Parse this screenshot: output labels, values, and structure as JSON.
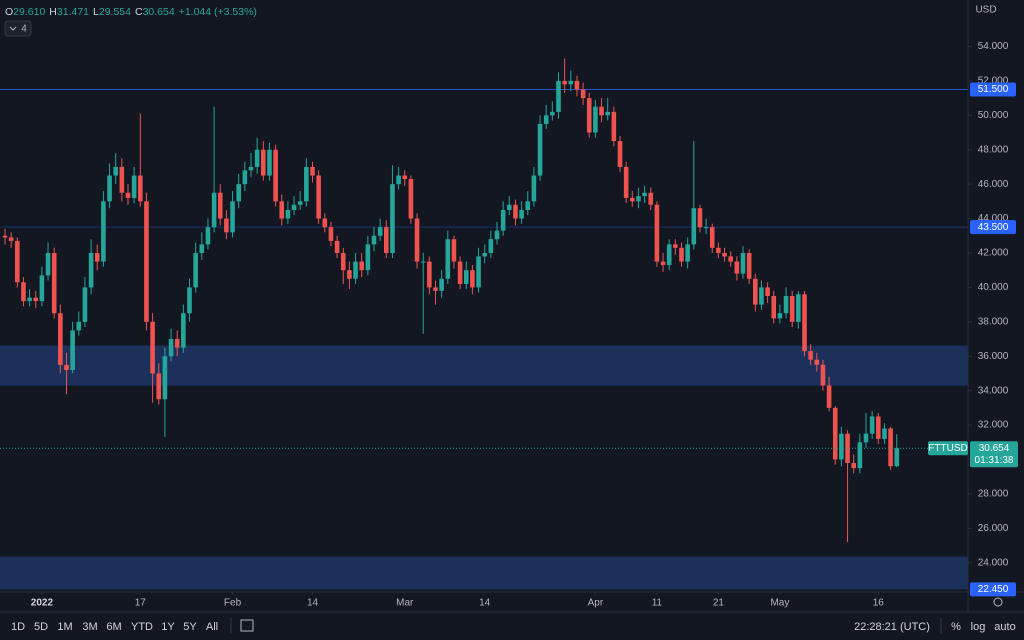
{
  "chart_data": {
    "type": "candlestick",
    "symbol": "FTTUSD",
    "currency": "USD",
    "indicator_count": 4,
    "header": [
      {
        "key": "O",
        "value": "29.610"
      },
      {
        "key": "H",
        "value": "31.471"
      },
      {
        "key": "L",
        "value": "29.554"
      },
      {
        "key": "C",
        "value": "30.654"
      },
      {
        "key": "",
        "value": "+1.044 (+3.53%)"
      }
    ],
    "up_color": "#26a69a",
    "down_color": "#ef5350",
    "open": [
      43.0,
      42.9,
      42.7,
      40.3,
      39.2,
      39.4,
      39.2,
      40.7,
      42.0,
      38.5,
      35.5,
      35.2,
      37.5,
      38.0,
      40.0,
      42.0,
      41.5,
      45.0,
      46.5,
      47.0,
      45.5,
      45.2,
      46.5,
      45.0,
      38.0,
      35.0,
      33.5,
      36.0,
      37.0,
      36.5,
      38.5,
      40.0,
      42.0,
      42.5,
      43.5,
      45.5,
      44.0,
      43.2,
      45.0,
      46.0,
      46.8,
      47.0,
      48.0,
      46.5,
      48.0,
      45.0,
      44.0,
      44.5,
      44.8,
      45.0,
      47.0,
      46.5,
      44.0,
      43.5,
      42.7,
      42.0,
      41.0,
      40.5,
      41.5,
      41.0,
      42.5,
      43.0,
      43.5,
      42.0,
      46.0,
      46.5,
      46.3,
      44.0,
      41.5,
      41.5,
      40.0,
      39.8,
      40.5,
      42.8,
      41.5,
      40.2,
      41.0,
      40.0,
      41.8,
      42.0,
      42.8,
      43.3,
      44.5,
      44.8,
      44.0,
      44.5,
      45.0,
      46.5,
      49.5,
      50.0,
      50.2,
      52.0,
      51.8,
      52.0,
      51.5,
      51.0,
      49.0,
      50.5,
      50.0,
      50.2,
      48.5,
      47.0,
      45.2,
      45.0,
      45.3,
      45.5,
      44.8,
      41.5,
      41.3,
      42.5,
      42.3,
      41.5,
      42.5,
      44.6,
      43.5,
      43.5,
      42.3,
      42.0,
      41.8,
      41.5,
      40.8,
      42.0,
      40.5,
      39.0,
      40.0,
      39.5,
      38.2,
      38.5,
      39.5,
      38.0,
      39.6,
      36.3,
      35.8,
      35.5,
      34.3,
      33.0,
      30.0,
      31.5,
      29.8,
      29.5,
      31.0,
      31.5,
      32.5,
      31.2,
      31.8,
      29.61
    ],
    "high": [
      43.4,
      43.2,
      42.9,
      40.6,
      39.9,
      39.8,
      41.2,
      42.6,
      42.3,
      39.0,
      36.2,
      38.0,
      38.6,
      40.6,
      42.8,
      42.5,
      45.6,
      47.2,
      47.8,
      47.5,
      46.0,
      47.0,
      50.1,
      45.5,
      38.5,
      35.6,
      36.5,
      37.6,
      37.5,
      39.0,
      40.5,
      42.6,
      43.2,
      44.0,
      50.5,
      46.0,
      44.5,
      45.6,
      46.6,
      47.3,
      47.8,
      48.7,
      48.5,
      48.4,
      48.3,
      45.4,
      45.0,
      45.3,
      45.6,
      47.5,
      47.3,
      46.8,
      44.3,
      43.8,
      43.0,
      42.3,
      41.5,
      42.0,
      42.0,
      43.0,
      43.5,
      44.0,
      43.9,
      47.1,
      47.0,
      46.8,
      46.5,
      44.3,
      42.0,
      41.8,
      40.4,
      41.0,
      43.3,
      43.0,
      41.8,
      41.5,
      41.3,
      42.3,
      42.5,
      43.3,
      43.8,
      45.0,
      45.3,
      45.1,
      45.0,
      45.6,
      47.0,
      50.0,
      50.6,
      50.8,
      52.5,
      53.3,
      52.6,
      52.3,
      51.9,
      51.3,
      50.9,
      51.0,
      51.0,
      50.5,
      48.8,
      47.3,
      45.6,
      45.8,
      45.9,
      45.8,
      45.0,
      42.0,
      42.8,
      42.8,
      42.6,
      42.9,
      48.5,
      44.8,
      44.0,
      43.7,
      42.6,
      42.3,
      42.1,
      41.8,
      42.4,
      42.2,
      40.8,
      40.4,
      40.3,
      39.8,
      39.0,
      40.0,
      39.8,
      39.8,
      39.8,
      36.7,
      36.2,
      35.8,
      34.8,
      33.1,
      31.9,
      31.7,
      30.3,
      31.5,
      32.7,
      32.8,
      32.7,
      32.1,
      31.9,
      31.471
    ],
    "low": [
      42.5,
      42.3,
      40.0,
      38.9,
      38.9,
      38.8,
      38.9,
      40.4,
      38.2,
      35.0,
      33.8,
      35.0,
      37.2,
      37.7,
      39.6,
      41.0,
      41.2,
      44.6,
      46.0,
      45.0,
      44.8,
      44.9,
      44.7,
      37.5,
      33.3,
      33.2,
      31.3,
      35.7,
      36.0,
      36.2,
      38.0,
      39.7,
      41.6,
      42.2,
      43.2,
      43.6,
      42.8,
      42.9,
      44.6,
      45.6,
      46.4,
      46.6,
      46.2,
      46.2,
      44.7,
      43.6,
      43.7,
      44.2,
      44.5,
      44.7,
      46.1,
      43.7,
      43.2,
      42.4,
      41.7,
      40.2,
      39.9,
      40.2,
      40.6,
      40.7,
      42.1,
      42.7,
      41.7,
      41.7,
      45.7,
      45.9,
      43.7,
      41.1,
      37.3,
      39.6,
      39.0,
      39.4,
      40.2,
      41.1,
      39.9,
      39.9,
      39.6,
      39.7,
      41.4,
      41.7,
      42.5,
      43.0,
      44.2,
      43.6,
      43.7,
      44.2,
      44.7,
      46.2,
      49.2,
      49.7,
      49.8,
      51.3,
      51.4,
      51.1,
      50.6,
      48.7,
      48.7,
      49.6,
      49.7,
      48.2,
      46.7,
      44.9,
      44.7,
      44.6,
      44.9,
      44.5,
      41.2,
      40.9,
      41.0,
      41.9,
      41.2,
      41.1,
      42.2,
      43.2,
      43.1,
      42.0,
      41.7,
      41.5,
      41.2,
      40.4,
      40.5,
      40.2,
      38.6,
      38.7,
      39.1,
      37.9,
      37.9,
      38.2,
      37.7,
      37.6,
      36.0,
      35.5,
      35.1,
      34.0,
      32.8,
      29.7,
      29.6,
      25.2,
      29.2,
      29.2,
      30.7,
      31.2,
      30.9,
      30.9,
      29.4,
      29.554
    ],
    "close": [
      42.9,
      42.7,
      40.3,
      39.2,
      39.4,
      39.2,
      40.7,
      42.0,
      38.5,
      35.5,
      35.2,
      37.5,
      38.0,
      40.0,
      42.0,
      41.5,
      45.0,
      46.5,
      47.0,
      45.5,
      45.2,
      46.5,
      45.0,
      38.0,
      35.0,
      33.5,
      36.0,
      37.0,
      36.5,
      38.5,
      40.0,
      42.0,
      42.5,
      43.5,
      45.5,
      44.0,
      43.2,
      45.0,
      46.0,
      46.8,
      47.0,
      48.0,
      46.5,
      48.0,
      45.0,
      44.0,
      44.5,
      44.8,
      45.0,
      47.0,
      46.5,
      44.0,
      43.5,
      42.7,
      42.0,
      41.0,
      40.5,
      41.5,
      41.0,
      42.5,
      43.0,
      43.5,
      42.0,
      46.0,
      46.5,
      46.3,
      44.0,
      41.5,
      41.5,
      40.0,
      39.8,
      40.5,
      42.8,
      41.5,
      40.2,
      41.0,
      40.0,
      41.8,
      42.0,
      42.8,
      43.3,
      44.5,
      44.8,
      44.0,
      44.5,
      45.0,
      46.5,
      49.5,
      50.0,
      50.2,
      52.0,
      51.8,
      52.0,
      51.5,
      51.0,
      49.0,
      50.5,
      50.0,
      50.2,
      48.5,
      47.0,
      45.2,
      45.0,
      45.3,
      45.5,
      44.8,
      41.5,
      41.3,
      42.5,
      42.3,
      41.5,
      42.5,
      44.6,
      43.5,
      43.5,
      42.3,
      42.0,
      41.8,
      41.5,
      40.8,
      42.0,
      40.5,
      39.0,
      40.0,
      39.5,
      38.2,
      38.5,
      39.5,
      38.0,
      39.6,
      36.3,
      35.8,
      35.5,
      34.3,
      33.0,
      30.0,
      31.5,
      29.8,
      29.5,
      31.0,
      31.5,
      32.5,
      31.2,
      31.8,
      29.61,
      30.654
    ],
    "ylim": [
      22.3,
      56.7
    ],
    "yticks": [
      {
        "value": 24,
        "label": "24.000"
      },
      {
        "value": 26,
        "label": "26.000"
      },
      {
        "value": 28,
        "label": "28.000"
      },
      {
        "value": 30,
        "label": "30.000"
      },
      {
        "value": 32,
        "label": "32.000"
      },
      {
        "value": 34,
        "label": "34.000"
      },
      {
        "value": 36,
        "label": "36.000"
      },
      {
        "value": 38,
        "label": "38.000"
      },
      {
        "value": 40,
        "label": "40.000"
      },
      {
        "value": 42,
        "label": "42.000"
      },
      {
        "value": 44,
        "label": "44.000"
      },
      {
        "value": 46,
        "label": "46.000"
      },
      {
        "value": 48,
        "label": "48.000"
      },
      {
        "value": 50,
        "label": "50.000"
      },
      {
        "value": 52,
        "label": "52.000"
      },
      {
        "value": 54,
        "label": "54.000"
      }
    ],
    "xticks": [
      {
        "value": 6,
        "label": "2022"
      },
      {
        "value": 22,
        "label": "17"
      },
      {
        "value": 37,
        "label": "Feb"
      },
      {
        "value": 50,
        "label": "14"
      },
      {
        "value": 65,
        "label": "Mar"
      },
      {
        "value": 78,
        "label": "14"
      },
      {
        "value": 96,
        "label": "Apr"
      },
      {
        "value": 106,
        "label": "11"
      },
      {
        "value": 116,
        "label": "21"
      },
      {
        "value": 126,
        "label": "May"
      },
      {
        "value": 142,
        "label": "16"
      }
    ],
    "levels": [
      {
        "value": 51.5,
        "label": "51.500",
        "color": "#2962ff"
      },
      {
        "value": 43.5,
        "label": "43.500",
        "color": "#2962ff"
      }
    ],
    "zones": [
      {
        "from": 34.29,
        "to": 36.62,
        "color": "#1f3566"
      },
      {
        "from": 22.45,
        "to": 24.35,
        "color": "#1f3566",
        "label": "22.450"
      }
    ],
    "last": {
      "value": 30.654,
      "label": "30.654",
      "countdown": "01:31:38"
    }
  },
  "toolbar": {
    "ranges": [
      "1D",
      "5D",
      "1M",
      "3M",
      "6M",
      "YTD",
      "1Y",
      "5Y",
      "All"
    ],
    "clock": "22:28:21 (UTC)",
    "options": [
      "%",
      "log",
      "auto"
    ]
  }
}
